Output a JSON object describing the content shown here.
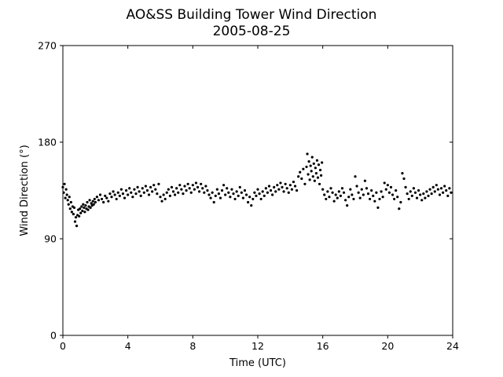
{
  "chart_data": {
    "type": "scatter",
    "title": "AO&SS Building Tower Wind Direction",
    "subtitle": "2005-08-25",
    "xlabel": "Time (UTC)",
    "ylabel": "Wind Direction (°)",
    "xlim": [
      0,
      24
    ],
    "ylim": [
      0,
      270
    ],
    "xticks": [
      0,
      4,
      8,
      12,
      16,
      20,
      24
    ],
    "yticks": [
      0,
      90,
      180,
      270
    ],
    "grid": false,
    "marker_color": "#000000",
    "series": [
      {
        "points": [
          [
            0.0,
            138
          ],
          [
            0.05,
            133
          ],
          [
            0.1,
            141
          ],
          [
            0.15,
            128
          ],
          [
            0.2,
            136
          ],
          [
            0.25,
            131
          ],
          [
            0.3,
            126
          ],
          [
            0.35,
            122
          ],
          [
            0.4,
            129
          ],
          [
            0.45,
            118
          ],
          [
            0.5,
            124
          ],
          [
            0.55,
            115
          ],
          [
            0.6,
            120
          ],
          [
            0.65,
            113
          ],
          [
            0.7,
            119
          ],
          [
            0.75,
            106
          ],
          [
            0.8,
            110
          ],
          [
            0.85,
            102
          ],
          [
            0.9,
            112
          ],
          [
            0.95,
            117
          ],
          [
            1.0,
            111
          ],
          [
            1.05,
            118
          ],
          [
            1.1,
            114
          ],
          [
            1.15,
            120
          ],
          [
            1.2,
            116
          ],
          [
            1.25,
            122
          ],
          [
            1.3,
            119
          ],
          [
            1.35,
            115
          ],
          [
            1.4,
            121
          ],
          [
            1.45,
            118
          ],
          [
            1.5,
            124
          ],
          [
            1.55,
            117
          ],
          [
            1.6,
            120
          ],
          [
            1.65,
            126
          ],
          [
            1.7,
            119
          ],
          [
            1.75,
            123
          ],
          [
            1.8,
            121
          ],
          [
            1.85,
            125
          ],
          [
            1.9,
            122
          ],
          [
            1.95,
            127
          ],
          [
            2.0,
            124
          ],
          [
            2.1,
            129
          ],
          [
            2.2,
            126
          ],
          [
            2.3,
            131
          ],
          [
            2.4,
            127
          ],
          [
            2.5,
            124
          ],
          [
            2.6,
            130
          ],
          [
            2.7,
            128
          ],
          [
            2.8,
            125
          ],
          [
            2.9,
            132
          ],
          [
            3.0,
            129
          ],
          [
            3.1,
            134
          ],
          [
            3.2,
            131
          ],
          [
            3.3,
            127
          ],
          [
            3.4,
            133
          ],
          [
            3.5,
            130
          ],
          [
            3.6,
            136
          ],
          [
            3.7,
            132
          ],
          [
            3.8,
            128
          ],
          [
            3.9,
            135
          ],
          [
            4.0,
            131
          ],
          [
            4.1,
            137
          ],
          [
            4.2,
            133
          ],
          [
            4.3,
            129
          ],
          [
            4.4,
            136
          ],
          [
            4.5,
            132
          ],
          [
            4.6,
            138
          ],
          [
            4.7,
            134
          ],
          [
            4.8,
            130
          ],
          [
            4.9,
            137
          ],
          [
            5.0,
            133
          ],
          [
            5.1,
            139
          ],
          [
            5.2,
            135
          ],
          [
            5.3,
            131
          ],
          [
            5.4,
            138
          ],
          [
            5.5,
            134
          ],
          [
            5.6,
            140
          ],
          [
            5.7,
            136
          ],
          [
            5.8,
            132
          ],
          [
            5.9,
            141
          ],
          [
            6.0,
            129
          ],
          [
            6.1,
            125
          ],
          [
            6.2,
            131
          ],
          [
            6.3,
            127
          ],
          [
            6.4,
            133
          ],
          [
            6.5,
            136
          ],
          [
            6.6,
            130
          ],
          [
            6.7,
            138
          ],
          [
            6.8,
            134
          ],
          [
            6.9,
            131
          ],
          [
            7.0,
            137
          ],
          [
            7.1,
            133
          ],
          [
            7.2,
            140
          ],
          [
            7.3,
            136
          ],
          [
            7.4,
            132
          ],
          [
            7.5,
            139
          ],
          [
            7.6,
            135
          ],
          [
            7.7,
            141
          ],
          [
            7.8,
            137
          ],
          [
            7.9,
            133
          ],
          [
            8.0,
            140
          ],
          [
            8.1,
            136
          ],
          [
            8.2,
            142
          ],
          [
            8.3,
            138
          ],
          [
            8.4,
            134
          ],
          [
            8.5,
            141
          ],
          [
            8.6,
            137
          ],
          [
            8.7,
            133
          ],
          [
            8.8,
            139
          ],
          [
            8.9,
            135
          ],
          [
            9.0,
            131
          ],
          [
            9.1,
            128
          ],
          [
            9.2,
            133
          ],
          [
            9.3,
            124
          ],
          [
            9.4,
            130
          ],
          [
            9.5,
            136
          ],
          [
            9.6,
            132
          ],
          [
            9.7,
            128
          ],
          [
            9.8,
            135
          ],
          [
            9.9,
            140
          ],
          [
            10.0,
            131
          ],
          [
            10.1,
            137
          ],
          [
            10.2,
            133
          ],
          [
            10.3,
            129
          ],
          [
            10.4,
            136
          ],
          [
            10.5,
            132
          ],
          [
            10.6,
            127
          ],
          [
            10.7,
            134
          ],
          [
            10.8,
            130
          ],
          [
            10.9,
            138
          ],
          [
            11.0,
            133
          ],
          [
            11.1,
            128
          ],
          [
            11.2,
            135
          ],
          [
            11.3,
            131
          ],
          [
            11.4,
            124
          ],
          [
            11.5,
            129
          ],
          [
            11.6,
            121
          ],
          [
            11.7,
            127
          ],
          [
            11.8,
            133
          ],
          [
            11.9,
            130
          ],
          [
            12.0,
            136
          ],
          [
            12.1,
            132
          ],
          [
            12.2,
            127
          ],
          [
            12.3,
            134
          ],
          [
            12.4,
            130
          ],
          [
            12.5,
            137
          ],
          [
            12.6,
            133
          ],
          [
            12.7,
            139
          ],
          [
            12.8,
            135
          ],
          [
            12.9,
            131
          ],
          [
            13.0,
            138
          ],
          [
            13.1,
            134
          ],
          [
            13.2,
            140
          ],
          [
            13.3,
            136
          ],
          [
            13.4,
            142
          ],
          [
            13.5,
            138
          ],
          [
            13.6,
            134
          ],
          [
            13.7,
            141
          ],
          [
            13.8,
            137
          ],
          [
            13.9,
            133
          ],
          [
            14.0,
            140
          ],
          [
            14.1,
            136
          ],
          [
            14.2,
            143
          ],
          [
            14.3,
            139
          ],
          [
            14.4,
            135
          ],
          [
            14.5,
            148
          ],
          [
            14.6,
            152
          ],
          [
            14.7,
            146
          ],
          [
            14.8,
            155
          ],
          [
            14.9,
            141
          ],
          [
            15.0,
            157
          ],
          [
            15.05,
            169
          ],
          [
            15.1,
            150
          ],
          [
            15.15,
            162
          ],
          [
            15.2,
            145
          ],
          [
            15.25,
            158
          ],
          [
            15.3,
            153
          ],
          [
            15.35,
            166
          ],
          [
            15.4,
            148
          ],
          [
            15.45,
            160
          ],
          [
            15.5,
            144
          ],
          [
            15.55,
            156
          ],
          [
            15.6,
            151
          ],
          [
            15.65,
            163
          ],
          [
            15.7,
            147
          ],
          [
            15.75,
            159
          ],
          [
            15.8,
            141
          ],
          [
            15.85,
            154
          ],
          [
            15.9,
            149
          ],
          [
            15.95,
            161
          ],
          [
            16.0,
            136
          ],
          [
            16.1,
            131
          ],
          [
            16.2,
            127
          ],
          [
            16.3,
            134
          ],
          [
            16.4,
            129
          ],
          [
            16.5,
            137
          ],
          [
            16.6,
            133
          ],
          [
            16.7,
            125
          ],
          [
            16.8,
            131
          ],
          [
            16.9,
            128
          ],
          [
            17.0,
            134
          ],
          [
            17.1,
            130
          ],
          [
            17.2,
            137
          ],
          [
            17.3,
            133
          ],
          [
            17.4,
            126
          ],
          [
            17.5,
            121
          ],
          [
            17.6,
            129
          ],
          [
            17.7,
            136
          ],
          [
            17.8,
            131
          ],
          [
            17.9,
            127
          ],
          [
            18.0,
            148
          ],
          [
            18.1,
            139
          ],
          [
            18.2,
            133
          ],
          [
            18.3,
            128
          ],
          [
            18.4,
            136
          ],
          [
            18.5,
            131
          ],
          [
            18.6,
            144
          ],
          [
            18.7,
            137
          ],
          [
            18.8,
            132
          ],
          [
            18.9,
            127
          ],
          [
            19.0,
            135
          ],
          [
            19.1,
            130
          ],
          [
            19.2,
            125
          ],
          [
            19.3,
            133
          ],
          [
            19.4,
            119
          ],
          [
            19.5,
            127
          ],
          [
            19.6,
            134
          ],
          [
            19.7,
            129
          ],
          [
            19.8,
            142
          ],
          [
            19.9,
            136
          ],
          [
            20.0,
            140
          ],
          [
            20.1,
            133
          ],
          [
            20.2,
            138
          ],
          [
            20.3,
            131
          ],
          [
            20.4,
            127
          ],
          [
            20.5,
            135
          ],
          [
            20.6,
            129
          ],
          [
            20.7,
            118
          ],
          [
            20.8,
            124
          ],
          [
            20.9,
            151
          ],
          [
            21.0,
            146
          ],
          [
            21.1,
            138
          ],
          [
            21.2,
            132
          ],
          [
            21.3,
            127
          ],
          [
            21.4,
            134
          ],
          [
            21.5,
            130
          ],
          [
            21.6,
            137
          ],
          [
            21.7,
            133
          ],
          [
            21.8,
            128
          ],
          [
            21.9,
            135
          ],
          [
            22.0,
            131
          ],
          [
            22.1,
            126
          ],
          [
            22.2,
            132
          ],
          [
            22.3,
            128
          ],
          [
            22.4,
            134
          ],
          [
            22.5,
            130
          ],
          [
            22.6,
            136
          ],
          [
            22.7,
            132
          ],
          [
            22.8,
            138
          ],
          [
            22.9,
            134
          ],
          [
            23.0,
            140
          ],
          [
            23.1,
            136
          ],
          [
            23.2,
            131
          ],
          [
            23.3,
            137
          ],
          [
            23.4,
            133
          ],
          [
            23.5,
            139
          ],
          [
            23.6,
            135
          ],
          [
            23.7,
            130
          ],
          [
            23.8,
            137
          ],
          [
            23.9,
            133
          ]
        ]
      }
    ]
  }
}
